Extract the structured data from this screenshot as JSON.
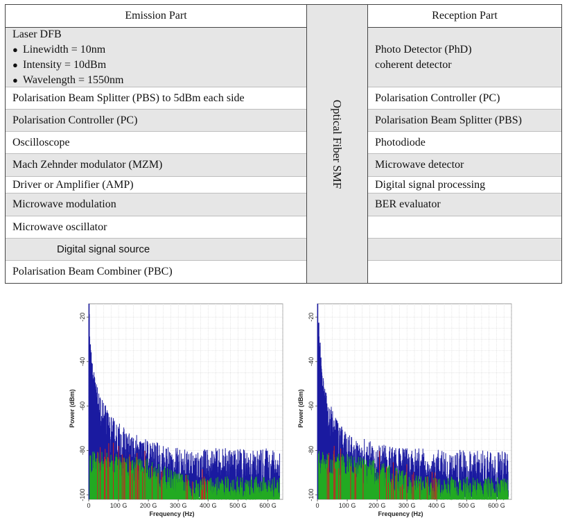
{
  "table": {
    "emission_header": "Emission Part",
    "reception_header": "Reception Part",
    "center_label": "Optical Fiber SMF",
    "emission": {
      "laser_title": "Laser DFB",
      "laser_bullets": [
        "Linewidth = 10nm",
        "Intensity = 10dBm",
        "Wavelength = 1550nm"
      ],
      "rows": [
        "Polarisation Beam Splitter (PBS) to 5dBm each side",
        "Polarisation Controller (PC)",
        "Oscilloscope",
        "Mach Zehnder modulator (MZM)",
        "Driver or Amplifier (AMP)",
        "Microwave modulation",
        "Microwave oscillator",
        "Digital signal source",
        "Polarisation Beam Combiner (PBC)"
      ]
    },
    "reception": {
      "first_lines": [
        "Photo Detector (PhD)",
        "coherent detector"
      ],
      "rows": [
        "Polarisation Controller (PC)",
        "Polarisation Beam Splitter (PBS)",
        "Photodiode",
        "Microwave detector",
        "Digital signal processing",
        "BER evaluator",
        "",
        "",
        ""
      ]
    }
  },
  "chart_data": [
    {
      "type": "line",
      "xlabel": "Frequency (Hz)",
      "ylabel": "Power (dBm)",
      "xticks": [
        "0",
        "100 G",
        "200 G",
        "300 G",
        "400 G",
        "500 G",
        "600 G"
      ],
      "yticks": [
        "-20",
        "-40",
        "-60",
        "-80",
        "-100"
      ],
      "xlim": [
        0,
        650
      ],
      "ylim": [
        -102,
        -14
      ],
      "grid": true,
      "colors": {
        "primary": "#1a1aa0",
        "secondary": "#22aa22",
        "tertiary": "#cc2222"
      },
      "series": [
        {
          "x": [
            0,
            5,
            10,
            15,
            20,
            30,
            40,
            50,
            60,
            80,
            100,
            130,
            160,
            200,
            250,
            300,
            400,
            500,
            650
          ],
          "values": [
            -14,
            -30,
            -40,
            -48,
            -52,
            -58,
            -63,
            -66,
            -70,
            -74,
            -76,
            -80,
            -82,
            -84,
            -86,
            -88,
            -88,
            -88,
            -88
          ]
        },
        {
          "x": [
            0,
            100,
            200,
            300,
            350,
            650
          ],
          "values": [
            -88,
            -90,
            -92,
            -98,
            -100,
            -100
          ]
        }
      ]
    },
    {
      "type": "line",
      "xlabel": "Frequency (Hz)",
      "ylabel": "Power (dBm)",
      "xticks": [
        "0",
        "100 G",
        "200 G",
        "300 G",
        "400 G",
        "500 G",
        "600 G"
      ],
      "yticks": [
        "-20",
        "-40",
        "-60",
        "-80",
        "-100"
      ],
      "xlim": [
        0,
        650
      ],
      "ylim": [
        -102,
        -14
      ],
      "grid": true,
      "colors": {
        "primary": "#1a1aa0",
        "secondary": "#22aa22",
        "tertiary": "#cc2222"
      },
      "series": [
        {
          "x": [
            0,
            5,
            10,
            15,
            20,
            30,
            40,
            50,
            60,
            80,
            100,
            130,
            160,
            200,
            250,
            300,
            400,
            500,
            650
          ],
          "values": [
            -14,
            -28,
            -38,
            -45,
            -52,
            -60,
            -66,
            -70,
            -74,
            -78,
            -80,
            -82,
            -84,
            -86,
            -87,
            -88,
            -88,
            -89,
            -89
          ]
        },
        {
          "x": [
            0,
            100,
            200,
            300,
            350,
            650
          ],
          "values": [
            -88,
            -90,
            -93,
            -98,
            -100,
            -100
          ]
        }
      ]
    }
  ]
}
